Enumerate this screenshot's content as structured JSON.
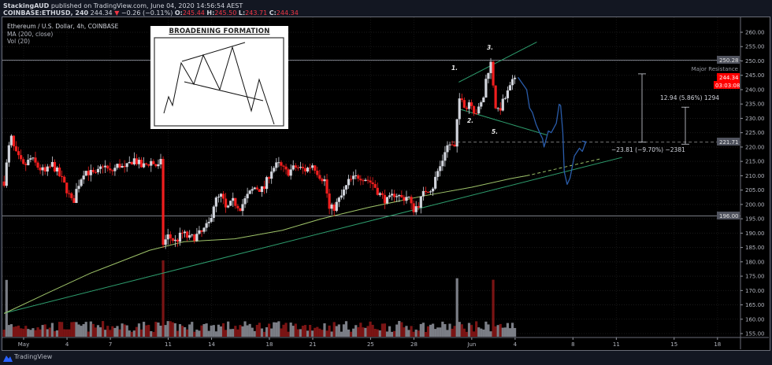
{
  "header": {
    "publisher": "StackingAUD",
    "published_line": "published on TradingView.com, June 04, 2020 14:56:54 AEST",
    "symbol": "COINBASE:ETHUSD, 240",
    "last": "244.34",
    "change": "−0.26 (−0.11%)",
    "o_label": "O:",
    "o": "245.44",
    "h_label": "H:",
    "h": "245.50",
    "l_label": "L:",
    "l": "243.71",
    "c_label": "C:",
    "c": "244.34"
  },
  "legend": {
    "title": "Ethereum / U.S. Dollar, 4h, COINBASE",
    "ma": "MA (200, close)",
    "vol": "Vol (20)"
  },
  "inset": {
    "title": "BROADENING FORMATION"
  },
  "annotations": {
    "major_resistance": "Major Resistance",
    "point_1": "1.",
    "point_2": "2.",
    "point_3": "3.",
    "point_5": "5.",
    "measure_down": "−23.81 (−9.70%) −2381",
    "measure_up": "12.94 (5.86%) 1294"
  },
  "price_labels": {
    "resistance": "250.28",
    "last_price": "244.34",
    "countdown": "03:03:08",
    "dashed_level": "221.71",
    "support": "196.00"
  },
  "footer": {
    "brand": "TradingView"
  },
  "colors": {
    "up_candle": "#d1d4dc",
    "down_candle": "#f01e1e",
    "ma_line": "#9fc46a",
    "trendline": "#2e9e6e",
    "projection": "#2a5caa",
    "last_price_bg": "#ff0000",
    "level_box": "#50535e"
  },
  "chart_data": {
    "type": "candlestick",
    "symbol": "ETHUSD",
    "interval": "4h",
    "ylim": [
      155,
      262
    ],
    "y_ticks": [
      "260.00",
      "255.00",
      "250.00",
      "245.00",
      "240.00",
      "235.00",
      "230.00",
      "225.00",
      "220.00",
      "215.00",
      "210.00",
      "205.00",
      "200.00",
      "195.00",
      "190.00",
      "185.00",
      "180.00",
      "175.00",
      "170.00",
      "165.00",
      "160.00",
      "155.00"
    ],
    "x_ticks": [
      {
        "label": "May",
        "day": 0
      },
      {
        "label": "4",
        "day": 3
      },
      {
        "label": "7",
        "day": 6
      },
      {
        "label": "11",
        "day": 10
      },
      {
        "label": "14",
        "day": 13
      },
      {
        "label": "18",
        "day": 17
      },
      {
        "label": "21",
        "day": 20
      },
      {
        "label": "25",
        "day": 24
      },
      {
        "label": "28",
        "day": 27
      },
      {
        "label": "Jun",
        "day": 31
      },
      {
        "label": "4",
        "day": 34
      },
      {
        "label": "8",
        "day": 38
      },
      {
        "label": "11",
        "day": 41
      },
      {
        "label": "15",
        "day": 45
      },
      {
        "label": "18",
        "day": 48
      }
    ],
    "close_path_days_since_may1": [
      [
        -1.35,
        208
      ],
      [
        -0.9,
        224
      ],
      [
        -0.6,
        218
      ],
      [
        0,
        213
      ],
      [
        0.5,
        216
      ],
      [
        1,
        213
      ],
      [
        1.5,
        211
      ],
      [
        2,
        214
      ],
      [
        2.6,
        209
      ],
      [
        3,
        205
      ],
      [
        3.4,
        200
      ],
      [
        3.7,
        206
      ],
      [
        4.2,
        212
      ],
      [
        5,
        210
      ],
      [
        5.5,
        214
      ],
      [
        6,
        211
      ],
      [
        6.6,
        214
      ],
      [
        7,
        212
      ],
      [
        7.6,
        216
      ],
      [
        8.2,
        213
      ],
      [
        8.8,
        215
      ],
      [
        9.3,
        213
      ],
      [
        9.55,
        215
      ],
      [
        9.6,
        186
      ],
      [
        10,
        189
      ],
      [
        10.5,
        187
      ],
      [
        11,
        190
      ],
      [
        11.5,
        188
      ],
      [
        12.3,
        190
      ],
      [
        12.8,
        193
      ],
      [
        13.2,
        201
      ],
      [
        13.7,
        203
      ],
      [
        14,
        198
      ],
      [
        14.5,
        201
      ],
      [
        15,
        199
      ],
      [
        15.5,
        203
      ],
      [
        16,
        206
      ],
      [
        16.6,
        205
      ],
      [
        17.1,
        212
      ],
      [
        17.6,
        214
      ],
      [
        18.2,
        211
      ],
      [
        18.8,
        213
      ],
      [
        19.5,
        212
      ],
      [
        20,
        214
      ],
      [
        20.5,
        210
      ],
      [
        20.9,
        208
      ],
      [
        21.1,
        198
      ],
      [
        21.5,
        199
      ],
      [
        22,
        203
      ],
      [
        22.5,
        208
      ],
      [
        23.2,
        210
      ],
      [
        23.7,
        209
      ],
      [
        24.2,
        207
      ],
      [
        24.7,
        203
      ],
      [
        25.2,
        201
      ],
      [
        25.7,
        204
      ],
      [
        26.2,
        202
      ],
      [
        26.6,
        203
      ],
      [
        26.9,
        198
      ],
      [
        27.3,
        200
      ],
      [
        27.8,
        205
      ],
      [
        28.3,
        206
      ],
      [
        28.6,
        211
      ],
      [
        28.9,
        214
      ],
      [
        29.2,
        220
      ],
      [
        29.5,
        221
      ],
      [
        29.9,
        219
      ],
      [
        30.05,
        236
      ],
      [
        30.3,
        238
      ],
      [
        30.6,
        233
      ],
      [
        30.9,
        237
      ],
      [
        31.2,
        232
      ],
      [
        31.5,
        233
      ],
      [
        31.8,
        237
      ],
      [
        32,
        244
      ],
      [
        32.2,
        248
      ],
      [
        32.4,
        250
      ],
      [
        32.55,
        236
      ],
      [
        32.8,
        232
      ],
      [
        33.1,
        235
      ],
      [
        33.4,
        238
      ],
      [
        33.7,
        241
      ],
      [
        34,
        244.34
      ]
    ],
    "ma200_path": [
      [
        -1.35,
        162
      ],
      [
        1.6,
        169
      ],
      [
        4.6,
        176
      ],
      [
        8.7,
        184
      ],
      [
        11.1,
        187
      ],
      [
        14.6,
        188
      ],
      [
        17.9,
        191
      ],
      [
        20.6,
        195
      ],
      [
        23.9,
        199
      ],
      [
        27.7,
        203
      ],
      [
        31,
        206
      ],
      [
        33.7,
        209
      ],
      [
        34.8,
        210
      ]
    ],
    "ma200_projection": [
      [
        34.8,
        210
      ],
      [
        40,
        216
      ]
    ],
    "trendline": [
      [
        -1.35,
        162.1
      ],
      [
        41.4,
        216.4
      ]
    ],
    "horizontal_levels": [
      250.28,
      196.0
    ],
    "dashed_level": 221.71,
    "broadening_upper": [
      [
        30.1,
        242.6
      ],
      [
        35.5,
        256.6
      ]
    ],
    "broadening_lower": [
      [
        30.1,
        233.3
      ],
      [
        36.2,
        224.2
      ]
    ],
    "projection_path": [
      [
        34.2,
        244.3
      ],
      [
        34.8,
        240
      ],
      [
        35,
        233.6
      ],
      [
        35.2,
        232
      ],
      [
        35.45,
        227.9
      ],
      [
        35.7,
        225
      ],
      [
        35.9,
        222.9
      ],
      [
        36,
        220
      ],
      [
        36.1,
        221.8
      ],
      [
        36.3,
        225.6
      ],
      [
        36.5,
        225
      ],
      [
        36.85,
        228.3
      ],
      [
        37.05,
        234.9
      ],
      [
        37.15,
        234.4
      ],
      [
        37.3,
        225
      ],
      [
        37.4,
        211.4
      ],
      [
        37.6,
        207
      ],
      [
        37.8,
        209.2
      ],
      [
        38.1,
        216.9
      ],
      [
        38.45,
        219.6
      ],
      [
        38.65,
        218.5
      ],
      [
        38.9,
        221.8
      ]
    ],
    "measure_down": {
      "from": 245.5,
      "to": 221.7,
      "change": -23.81,
      "percent": -9.7
    },
    "measure_up": {
      "from": 221.0,
      "to": 233.9,
      "change": 12.94,
      "percent": 5.86
    }
  }
}
